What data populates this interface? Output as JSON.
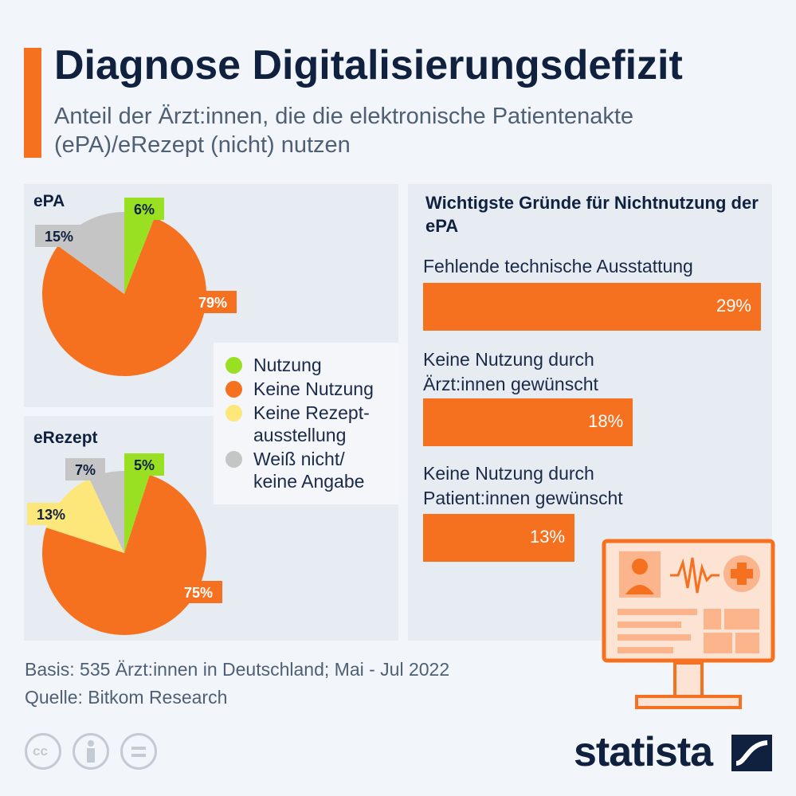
{
  "title": "Diagnose Digitalisierungsdefizit",
  "subtitle": "Anteil der Ärzt:innen, die die elektronische Patientenakte (ePA)/eRezept (nicht) nutzen",
  "colors": {
    "accent": "#f5711f",
    "nutzung": "#9ae022",
    "keine_nutzung": "#f5711f",
    "keine_rezept": "#fde67a",
    "weiss_nicht": "#c5c5c5"
  },
  "chart_data": [
    {
      "type": "pie",
      "title": "ePA",
      "slices": [
        {
          "label": "Nutzung",
          "value": 6,
          "display": "6%",
          "color": "#9ae022"
        },
        {
          "label": "Keine Nutzung",
          "value": 79,
          "display": "79%",
          "color": "#f5711f"
        },
        {
          "label": "Weiß nicht/ keine Angabe",
          "value": 15,
          "display": "15%",
          "color": "#c5c5c5"
        }
      ]
    },
    {
      "type": "pie",
      "title": "eRezept",
      "slices": [
        {
          "label": "Nutzung",
          "value": 5,
          "display": "5%",
          "color": "#9ae022"
        },
        {
          "label": "Keine Nutzung",
          "value": 75,
          "display": "75%",
          "color": "#f5711f"
        },
        {
          "label": "Keine Rezept-ausstellung",
          "value": 13,
          "display": "13%",
          "color": "#fde67a"
        },
        {
          "label": "Weiß nicht/ keine Angabe",
          "value": 7,
          "display": "7%",
          "color": "#c5c5c5"
        }
      ]
    },
    {
      "type": "bar",
      "title": "Wichtigste Gründe für Nichtnutzung der ePA",
      "categories": [
        "Fehlende technische Ausstattung",
        "Keine Nutzung durch Ärzt:innen gewünscht",
        "Keine Nutzung durch Patient:innen gewünscht"
      ],
      "values": [
        29,
        18,
        13
      ],
      "value_labels": [
        "29%",
        "18%",
        "13%"
      ],
      "color": "#f5711f"
    }
  ],
  "legend": [
    {
      "label": "Nutzung",
      "color": "#9ae022"
    },
    {
      "label": "Keine Nutzung",
      "color": "#f5711f"
    },
    {
      "label": "Keine Rezept-\nausstellung",
      "color": "#fde67a"
    },
    {
      "label": "Weiß nicht/\nkeine Angabe",
      "color": "#c5c5c5"
    }
  ],
  "footer": {
    "basis": "Basis: 535 Ärzt:innen in Deutschland; Mai - Jul 2022",
    "quelle": "Quelle: Bitkom Research"
  },
  "license_icons": [
    "cc-icon",
    "attribution-icon",
    "no-derivatives-icon"
  ],
  "brand": "statista"
}
